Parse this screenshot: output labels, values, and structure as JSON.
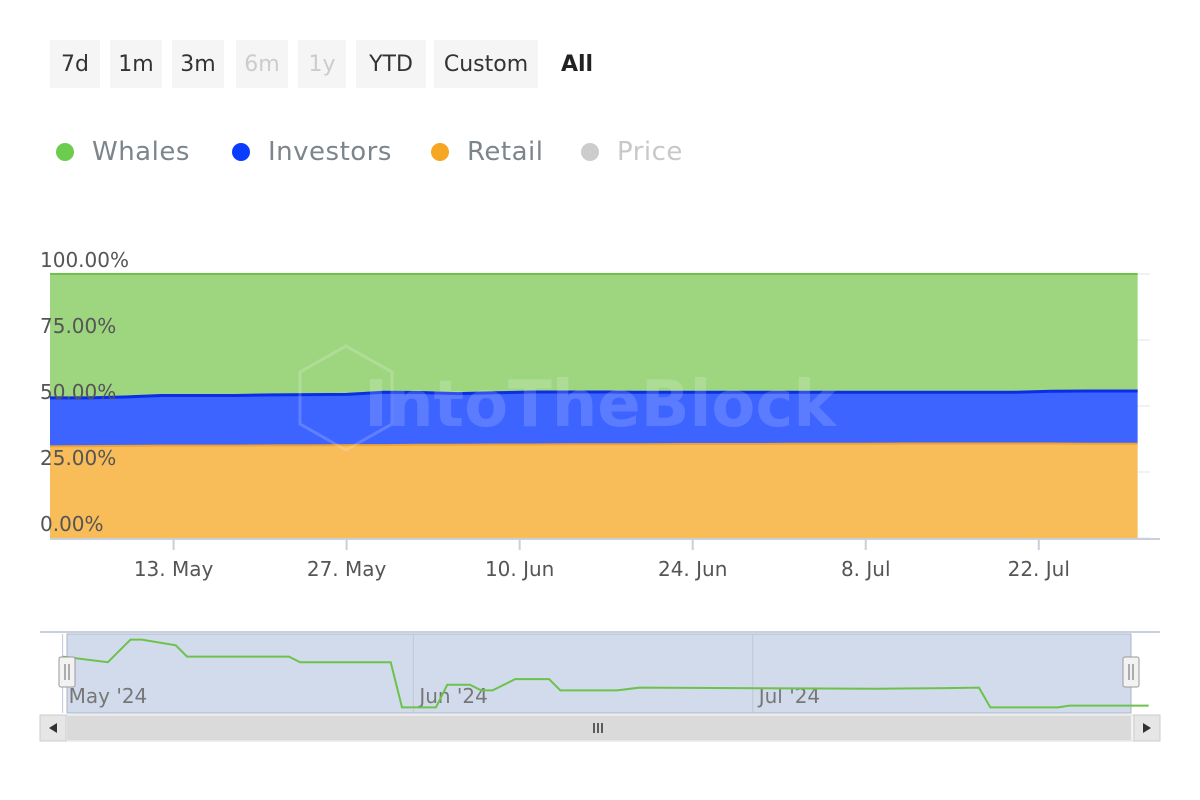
{
  "range_selector": {
    "buttons": [
      {
        "label": "7d",
        "state": "normal"
      },
      {
        "label": "1m",
        "state": "normal"
      },
      {
        "label": "3m",
        "state": "normal"
      },
      {
        "label": "6m",
        "state": "disabled"
      },
      {
        "label": "1y",
        "state": "disabled"
      },
      {
        "label": "YTD",
        "state": "normal"
      },
      {
        "label": "Custom",
        "state": "normal"
      },
      {
        "label": "All",
        "state": "active"
      }
    ]
  },
  "legend": {
    "items": [
      {
        "name": "Whales",
        "color": "#6ccc4e",
        "visible": true
      },
      {
        "name": "Investors",
        "color": "#0a3cff",
        "visible": true
      },
      {
        "name": "Retail",
        "color": "#f5a623",
        "visible": true
      },
      {
        "name": "Price",
        "color": "#cccccc",
        "visible": false
      }
    ]
  },
  "colors": {
    "whales_fill": "#9ed680",
    "whales_line": "#6cc24a",
    "investors_fill": "#3d64ff",
    "investors_line": "#0a2ee6",
    "retail_fill": "#f8bc58",
    "retail_line": "#f2a22e",
    "navigator_fill": "#d2dbeb",
    "navigator_line": "#6cc24a",
    "axis": "#c8d0dc",
    "text": "#666666"
  },
  "watermark": "IntoTheBlock",
  "chart_data": {
    "type": "area",
    "stacking": "percent",
    "x": [
      "2024-05-03",
      "2024-05-06",
      "2024-05-09",
      "2024-05-12",
      "2024-05-15",
      "2024-05-18",
      "2024-05-21",
      "2024-05-24",
      "2024-05-27",
      "2024-05-30",
      "2024-06-02",
      "2024-06-05",
      "2024-06-08",
      "2024-06-11",
      "2024-06-14",
      "2024-06-17",
      "2024-06-20",
      "2024-06-23",
      "2024-06-26",
      "2024-06-29",
      "2024-07-02",
      "2024-07-05",
      "2024-07-08",
      "2024-07-11",
      "2024-07-14",
      "2024-07-17",
      "2024-07-20",
      "2024-07-23",
      "2024-07-26",
      "2024-07-30"
    ],
    "series": [
      {
        "name": "Retail",
        "values": [
          34.7,
          34.8,
          34.9,
          35.0,
          35.0,
          35.0,
          35.1,
          35.1,
          35.2,
          35.2,
          35.3,
          35.3,
          35.4,
          35.4,
          35.5,
          35.5,
          35.5,
          35.6,
          35.6,
          35.6,
          35.7,
          35.7,
          35.7,
          35.8,
          35.8,
          35.8,
          35.8,
          35.8,
          35.7,
          35.7
        ]
      },
      {
        "name": "Investors",
        "values": [
          18.4,
          18.3,
          18.5,
          19.0,
          19.0,
          19.0,
          19.1,
          19.2,
          19.2,
          20.0,
          19.8,
          19.4,
          19.6,
          19.9,
          19.8,
          19.8,
          19.7,
          19.6,
          19.6,
          19.6,
          19.5,
          19.5,
          19.5,
          19.4,
          19.4,
          19.4,
          19.4,
          19.8,
          20.0,
          20.0
        ]
      },
      {
        "name": "Whales",
        "values": [
          46.9,
          46.9,
          46.6,
          46.0,
          46.0,
          46.0,
          45.8,
          45.7,
          45.6,
          44.8,
          44.9,
          45.3,
          45.0,
          44.7,
          44.7,
          44.7,
          44.8,
          44.8,
          44.8,
          44.8,
          44.8,
          44.8,
          44.8,
          44.8,
          44.8,
          44.8,
          44.8,
          44.4,
          44.3,
          44.3
        ]
      }
    ],
    "y_tick_labels": [
      "0.00%",
      "25.00%",
      "50.00%",
      "75.00%",
      "100.00%"
    ],
    "ylim": [
      0,
      100
    ],
    "x_tick_labels": [
      {
        "date": "2024-05-13",
        "label": "13. May"
      },
      {
        "date": "2024-05-27",
        "label": "27. May"
      },
      {
        "date": "2024-06-10",
        "label": "10. Jun"
      },
      {
        "date": "2024-06-24",
        "label": "24. Jun"
      },
      {
        "date": "2024-07-08",
        "label": "8. Jul"
      },
      {
        "date": "2024-07-22",
        "label": "22. Jul"
      }
    ],
    "xlim": [
      "2024-05-03",
      "2024-07-31"
    ],
    "navigator": {
      "x": [
        "2024-05-01",
        "2024-05-05",
        "2024-05-07",
        "2024-05-08",
        "2024-05-11",
        "2024-05-12",
        "2024-05-21",
        "2024-05-22",
        "2024-05-30",
        "2024-05-31",
        "2024-06-03",
        "2024-06-04",
        "2024-06-06",
        "2024-06-07",
        "2024-06-08",
        "2024-06-10",
        "2024-06-13",
        "2024-06-14",
        "2024-06-19",
        "2024-06-21",
        "2024-07-12",
        "2024-07-18",
        "2024-07-21",
        "2024-07-22",
        "2024-07-23",
        "2024-07-28",
        "2024-07-29",
        "2024-08-05"
      ],
      "values": [
        10,
        9,
        13,
        13,
        12,
        10,
        10,
        9,
        9,
        1,
        1,
        5,
        5,
        4,
        4,
        6,
        6,
        4,
        4,
        4.5,
        4.3,
        4.4,
        4.5,
        1,
        1,
        1,
        1.3,
        1.3
      ],
      "ylim": [
        0,
        14
      ],
      "xlim": [
        "2024-04-29",
        "2024-08-06"
      ],
      "labels": [
        {
          "date": "2024-05-01",
          "label": "May '24"
        },
        {
          "date": "2024-06-01",
          "label": "Jun '24"
        },
        {
          "date": "2024-07-01",
          "label": "Jul '24"
        }
      ]
    }
  }
}
